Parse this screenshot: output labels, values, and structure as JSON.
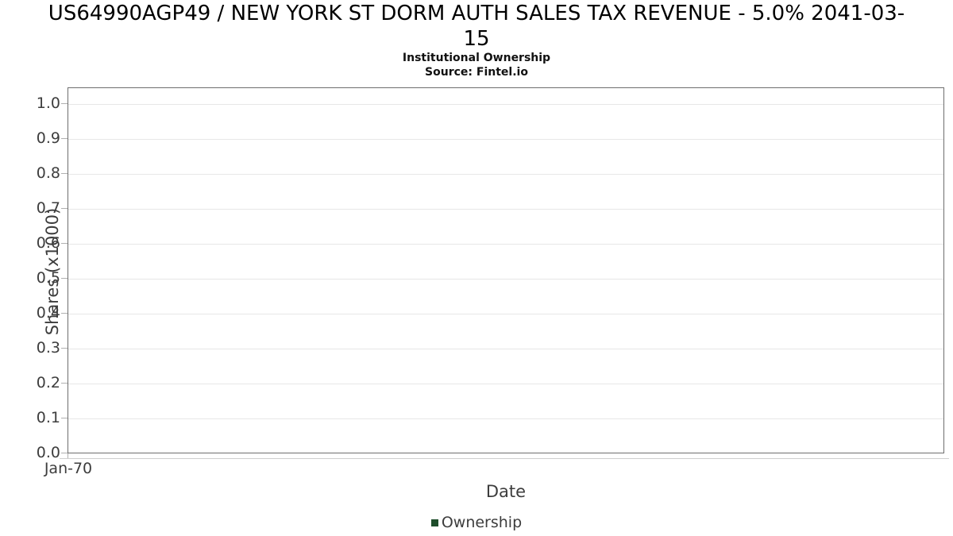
{
  "header": {
    "title_line1": "US64990AGP49 / NEW YORK ST DORM AUTH SALES TAX REVENUE - 5.0% 2041-03-",
    "title_line2": "15",
    "subtitle": "Institutional Ownership",
    "source": "Source: Fintel.io"
  },
  "chart_data": {
    "type": "line",
    "title": "US64990AGP49 / NEW YORK ST DORM AUTH SALES TAX REVENUE - 5.0% 2041-03-15",
    "subtitle": "Institutional Ownership",
    "source": "Source: Fintel.io",
    "xlabel": "Date",
    "ylabel": "Shares (x1000)",
    "ylim": [
      0.0,
      1.0
    ],
    "y_ticks": [
      "0.0",
      "0.1",
      "0.2",
      "0.3",
      "0.4",
      "0.5",
      "0.6",
      "0.7",
      "0.8",
      "0.9",
      "1.0"
    ],
    "x_ticks": [
      "Jan-70"
    ],
    "grid": true,
    "legend_position": "bottom-center",
    "series": [
      {
        "name": "Ownership",
        "color": "#1e4d2b",
        "x": [],
        "values": []
      }
    ],
    "colors": {
      "plot_border": "#6e6e6e",
      "gridline": "#e7e7e7",
      "tick_mark": "#b0b0b0",
      "axis_text": "#3d3d3d",
      "title_text": "#000000",
      "legend_accent": "#1e4d2b"
    }
  }
}
